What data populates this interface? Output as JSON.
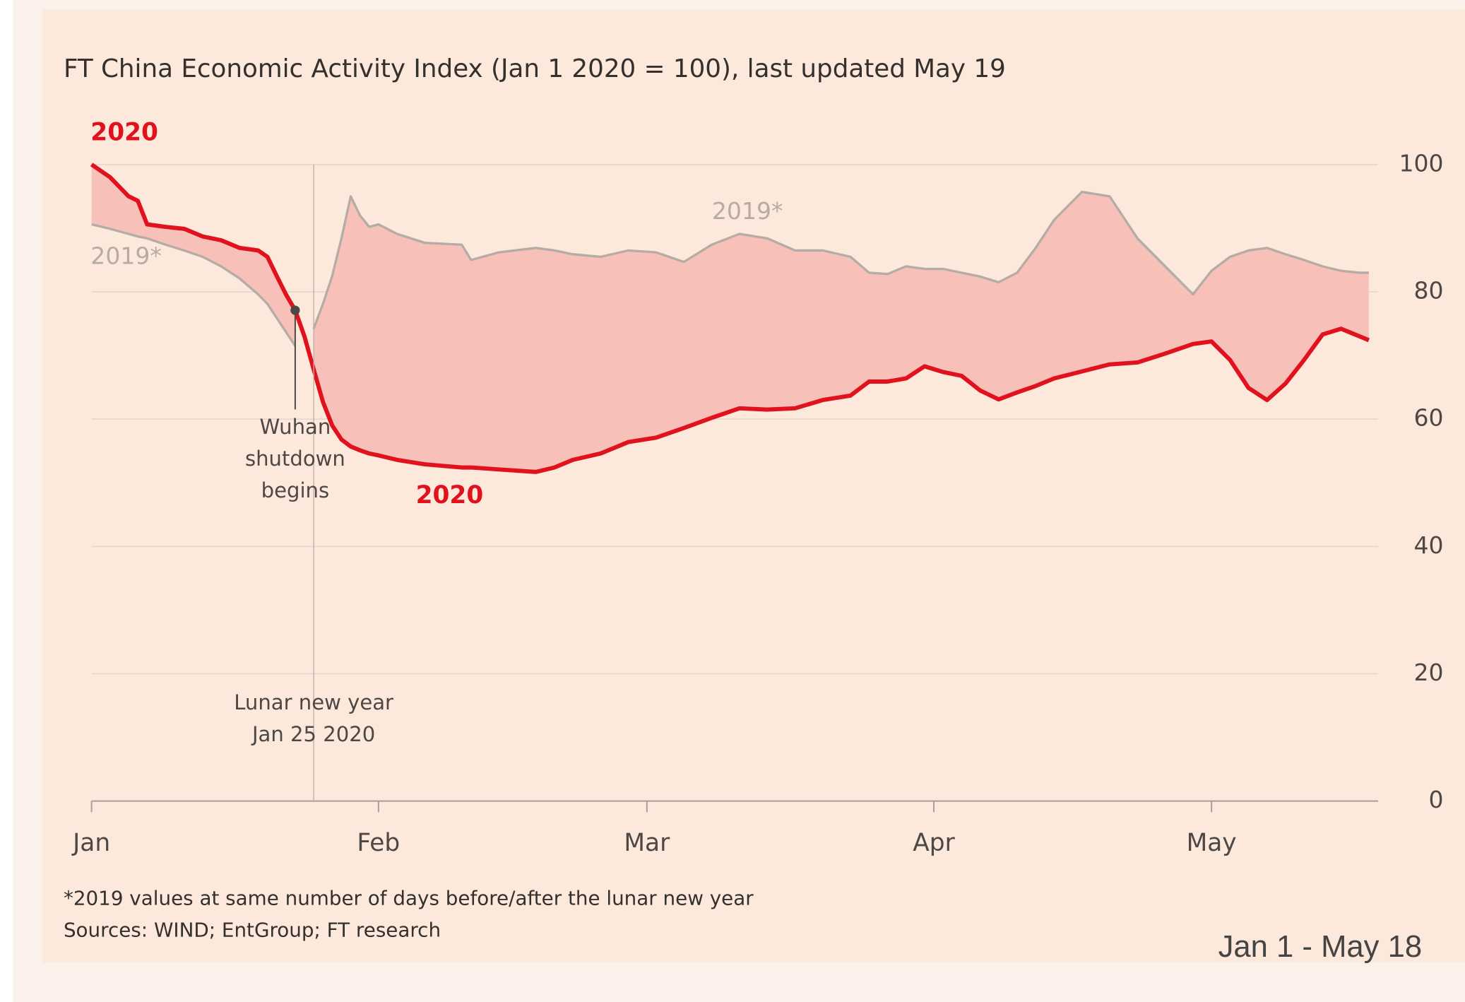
{
  "chart_data": {
    "type": "line",
    "title": "FT China Economic Activity Index (Jan 1 2020 = 100), last updated May 19",
    "range_label": "Jan 1 - May 18",
    "footnote": "*2019 values at same number of days before/after the lunar new year",
    "source": "Sources: WIND; EntGroup; FT research",
    "x": [
      0,
      2,
      4,
      5,
      6,
      8,
      10,
      12,
      14,
      16,
      18,
      19,
      20,
      21,
      22,
      23,
      24,
      25,
      26,
      27,
      28,
      29,
      30,
      31,
      33,
      36,
      40,
      41,
      44,
      48,
      50,
      52,
      55,
      58,
      61,
      64,
      67,
      70,
      73,
      76,
      79,
      82,
      84,
      86,
      88,
      90,
      92,
      94,
      96,
      98,
      100,
      102,
      104,
      107,
      110,
      113,
      116,
      119,
      121,
      123,
      125,
      127,
      129,
      131,
      133,
      135,
      137,
      138
    ],
    "series": [
      {
        "name": "2020",
        "color": "#e0121d",
        "values": [
          100,
          98,
          95,
          94.3,
          90.6,
          90.2,
          89.9,
          88.7,
          88.1,
          86.9,
          86.5,
          85.5,
          82.5,
          79.6,
          77.1,
          73,
          67.8,
          62.7,
          59,
          56.8,
          55.7,
          55.1,
          54.6,
          54.3,
          53.6,
          52.9,
          52.4,
          52.4,
          52.1,
          51.7,
          52.4,
          53.6,
          54.6,
          56.4,
          57.1,
          58.6,
          60.2,
          61.7,
          61.5,
          61.7,
          63,
          63.7,
          65.9,
          65.9,
          66.4,
          68.3,
          67.4,
          66.8,
          64.5,
          63.1,
          64.2,
          65.2,
          66.4,
          67.5,
          68.6,
          68.9,
          70.3,
          71.8,
          72.2,
          69.3,
          64.9,
          63,
          65.6,
          69.3,
          73.3,
          74.2,
          73,
          72.4
        ]
      },
      {
        "name": "2019*",
        "color": "#b5aca6",
        "values": [
          90.6,
          89.9,
          89.1,
          88.7,
          88.4,
          87.4,
          86.5,
          85.5,
          84,
          82.1,
          79.6,
          78.1,
          75.9,
          73.7,
          71.5,
          null,
          74.2,
          78.1,
          82.5,
          88.4,
          95,
          92,
          90.2,
          90.6,
          89.1,
          87.7,
          87.4,
          85,
          86.2,
          86.9,
          86.5,
          85.9,
          85.5,
          86.5,
          86.2,
          84.7,
          87.4,
          89.1,
          88.4,
          86.5,
          86.5,
          85.5,
          83,
          82.8,
          84,
          83.6,
          83.6,
          83,
          82.4,
          81.5,
          83,
          86.9,
          91.3,
          95.7,
          95,
          88.4,
          84,
          79.6,
          83.3,
          85.5,
          86.5,
          86.9,
          85.9,
          85,
          84,
          83.3,
          83,
          83
        ]
      }
    ],
    "fill_between": "#f7c1ba",
    "xlim": [
      0,
      139
    ],
    "xticks": [
      {
        "value": 0,
        "label": "Jan"
      },
      {
        "value": 31,
        "label": "Feb"
      },
      {
        "value": 60,
        "label": "Mar"
      },
      {
        "value": 91,
        "label": "Apr"
      },
      {
        "value": 121,
        "label": "May"
      }
    ],
    "ylim": [
      0,
      100
    ],
    "yticks": [
      0,
      20,
      40,
      60,
      80,
      100
    ],
    "grid": true,
    "annotations": [
      {
        "lines": [
          "Wuhan",
          "shutdown",
          "begins"
        ],
        "x": 22
      },
      {
        "lines": [
          "Lunar new year",
          "Jan 25 2020"
        ],
        "x": 24
      }
    ]
  }
}
